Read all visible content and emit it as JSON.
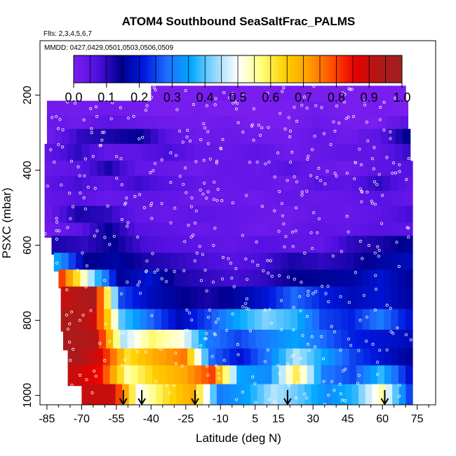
{
  "chart_data": {
    "type": "heatmap",
    "title": "ATOM4 Southbound SeaSaltFrac_PALMS",
    "flights_text": "Flts: 2,3,4,5,6,7",
    "dates_text": "MMDD: 0427,0429,0501,0503,0506,0509",
    "xlabel": "Latitude (deg N)",
    "ylabel": "PSXC (mbar)",
    "xlim": [
      -88,
      83
    ],
    "ylim": [
      1025,
      55
    ],
    "x_ticks": [
      -85,
      -70,
      -55,
      -40,
      -25,
      -10,
      5,
      15,
      30,
      45,
      60,
      75
    ],
    "x_tick_labels": [
      "-85",
      "-70",
      "-55",
      "-40",
      "-25",
      "-10",
      "5",
      "15",
      "30",
      "45",
      "60",
      "75"
    ],
    "y_ticks": [
      200,
      400,
      600,
      800,
      1000
    ],
    "y_tick_labels": [
      "200",
      "400",
      "600",
      "800",
      "1000"
    ],
    "colorbar": {
      "min": 0.0,
      "max": 1.0,
      "tick_values": [
        0.0,
        0.1,
        0.2,
        0.3,
        0.4,
        0.5,
        0.6,
        0.7,
        0.8,
        0.9,
        1.0
      ],
      "tick_labels": [
        "0.0",
        "0.1",
        "0.2",
        "0.3",
        "0.4",
        "0.5",
        "0.6",
        "0.7",
        "0.8",
        "0.9",
        "1.0"
      ],
      "colors": [
        "#7a1ef0",
        "#5010e0",
        "#000090",
        "#0018e0",
        "#1e70ff",
        "#00a8ff",
        "#90d8ff",
        "#ffffff",
        "#ffff80",
        "#ffd000",
        "#ffa000",
        "#ff5000",
        "#e80000",
        "#b01818",
        "#a02020"
      ]
    },
    "profile_arrows_lat": [
      -52,
      -44,
      -21,
      19,
      61
    ],
    "layers": [
      {
        "p_top": 175,
        "p_bot": 240,
        "lat_start": -40,
        "lat_end": 70,
        "values": [
          0.0,
          0.0,
          0.0,
          0.02,
          0.0,
          0.0,
          0.01,
          0.0,
          0.0,
          0.0,
          0.0,
          0.0
        ]
      },
      {
        "p_top": 215,
        "p_bot": 265,
        "lat_start": -85,
        "lat_end": 71,
        "values": [
          0.02,
          0.01,
          0.02,
          0.01,
          0.0,
          0.01,
          0.0,
          0.0,
          0.0,
          0.02,
          0.0,
          0.01,
          0.0
        ]
      },
      {
        "p_top": 255,
        "p_bot": 300,
        "lat_start": -85,
        "lat_end": 71,
        "values": [
          0.03,
          0.02,
          0.05,
          0.03,
          0.02,
          0.01,
          0.02,
          0.0,
          0.0,
          0.03,
          0.01,
          0.0,
          0.05
        ]
      },
      {
        "p_top": 290,
        "p_bot": 335,
        "lat_start": -85,
        "lat_end": 72,
        "values": [
          0.02,
          0.1,
          0.12,
          0.14,
          0.05,
          0.02,
          0.03,
          0.02,
          0.01,
          0.04,
          0.02,
          0.05,
          0.14
        ]
      },
      {
        "p_top": 330,
        "p_bot": 380,
        "lat_start": -86,
        "lat_end": 72,
        "values": [
          0.05,
          0.1,
          0.04,
          0.05,
          0.08,
          0.04,
          0.03,
          0.05,
          0.02,
          0.03,
          0.05,
          0.04,
          0.09
        ]
      },
      {
        "p_top": 375,
        "p_bot": 420,
        "lat_start": -86,
        "lat_end": 73,
        "values": [
          0.03,
          0.05,
          0.12,
          0.04,
          0.03,
          0.02,
          0.04,
          0.03,
          0.06,
          0.03,
          0.02,
          0.05,
          0.06
        ]
      },
      {
        "p_top": 415,
        "p_bot": 460,
        "lat_start": -86,
        "lat_end": 73,
        "values": [
          0.05,
          0.08,
          0.05,
          0.09,
          0.06,
          0.04,
          0.03,
          0.04,
          0.02,
          0.06,
          0.05,
          0.1,
          0.05
        ]
      },
      {
        "p_top": 455,
        "p_bot": 500,
        "lat_start": -86,
        "lat_end": 73,
        "values": [
          0.04,
          0.06,
          0.03,
          0.05,
          0.04,
          0.02,
          0.03,
          0.02,
          0.04,
          0.03,
          0.04,
          0.06,
          0.04
        ]
      },
      {
        "p_top": 495,
        "p_bot": 545,
        "lat_start": -86,
        "lat_end": 73,
        "values": [
          0.03,
          0.12,
          0.1,
          0.04,
          0.03,
          0.05,
          0.04,
          0.03,
          0.02,
          0.04,
          0.03,
          0.05,
          0.08
        ]
      },
      {
        "p_top": 540,
        "p_bot": 580,
        "lat_start": -86,
        "lat_end": 73,
        "values": [
          0.02,
          0.05,
          0.14,
          0.06,
          0.05,
          0.03,
          0.04,
          0.02,
          0.03,
          0.05,
          0.04,
          0.06,
          0.05
        ]
      },
      {
        "p_top": 575,
        "p_bot": 625,
        "lat_start": -83,
        "lat_end": 73,
        "values": [
          0.12,
          0.1,
          0.14,
          0.08,
          0.06,
          0.05,
          0.04,
          0.06,
          0.05,
          0.04,
          0.1,
          0.12,
          0.15
        ]
      },
      {
        "p_top": 620,
        "p_bot": 670,
        "lat_start": -82,
        "lat_end": 73,
        "values": [
          0.35,
          0.14,
          0.16,
          0.12,
          0.1,
          0.08,
          0.06,
          0.08,
          0.12,
          0.1,
          0.12,
          0.16,
          0.18
        ]
      },
      {
        "p_top": 665,
        "p_bot": 715,
        "lat_start": -80,
        "lat_end": 73,
        "values": [
          0.8,
          0.45,
          0.15,
          0.2,
          0.12,
          0.1,
          0.08,
          0.1,
          0.14,
          0.15,
          0.16,
          0.2,
          0.15
        ]
      },
      {
        "p_top": 710,
        "p_bot": 775,
        "lat_start": -79,
        "lat_end": 73,
        "values": [
          0.9,
          0.95,
          0.25,
          0.18,
          0.15,
          0.12,
          0.16,
          0.2,
          0.28,
          0.22,
          0.18,
          0.2,
          0.16
        ]
      },
      {
        "p_top": 770,
        "p_bot": 830,
        "lat_start": -79,
        "lat_end": 73,
        "values": [
          0.95,
          0.9,
          0.4,
          0.28,
          0.18,
          0.25,
          0.35,
          0.42,
          0.38,
          0.25,
          0.22,
          0.3,
          0.2
        ]
      },
      {
        "p_top": 825,
        "p_bot": 880,
        "lat_start": -78,
        "lat_end": 73,
        "values": [
          0.95,
          0.92,
          0.45,
          0.58,
          0.52,
          0.3,
          0.25,
          0.3,
          0.35,
          0.28,
          0.22,
          0.2,
          0.18
        ]
      },
      {
        "p_top": 875,
        "p_bot": 925,
        "lat_start": -76,
        "lat_end": 73,
        "values": [
          0.95,
          0.88,
          0.62,
          0.7,
          0.75,
          0.28,
          0.2,
          0.3,
          0.45,
          0.35,
          0.25,
          0.2,
          0.15
        ]
      },
      {
        "p_top": 920,
        "p_bot": 975,
        "lat_start": -76,
        "lat_end": 73,
        "values": [
          0.9,
          0.85,
          0.55,
          0.65,
          0.7,
          0.8,
          0.35,
          0.32,
          0.6,
          0.3,
          0.25,
          0.38,
          0.2
        ]
      },
      {
        "p_top": 970,
        "p_bot": 1025,
        "lat_start": -70,
        "lat_end": 73,
        "values": [
          0.9,
          0.9,
          0.5,
          0.62,
          0.7,
          0.3,
          0.35,
          0.45,
          0.4,
          0.32,
          0.38,
          0.55,
          0.25
        ]
      }
    ]
  }
}
